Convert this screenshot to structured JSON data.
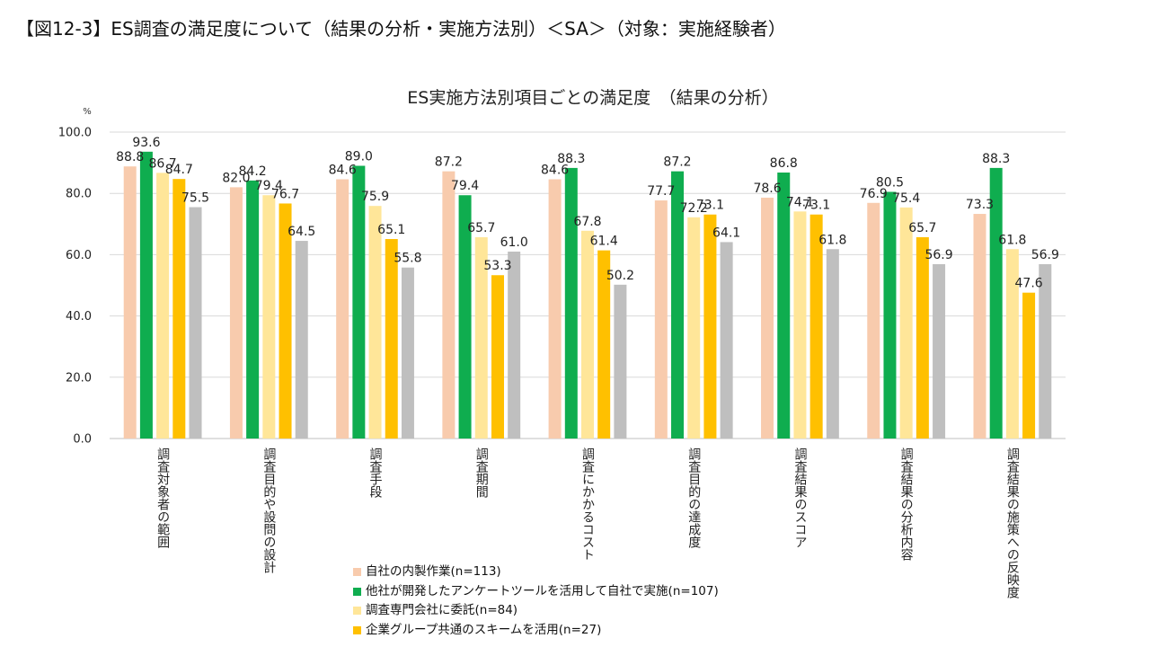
{
  "figure_title": "【図12-3】ES調査の満足度について（結果の分析・実施方法別）＜SA＞（対象：実施経験者）",
  "chart_data": {
    "type": "bar",
    "title": "ES実施方法別項目ごとの満足度　（結果の分析）",
    "ylabel": "%",
    "xlabel": "",
    "ylim": [
      0,
      100
    ],
    "yticks": [
      "0.0",
      "20.0",
      "40.0",
      "60.0",
      "80.0",
      "100.0"
    ],
    "grid": true,
    "legend_position": "bottom-center",
    "categories": [
      "調査対象者の範囲",
      "調査目的や設問の設計",
      "調査手段",
      "調査期間",
      "調査にかかるコスト",
      "調査目的の達成度",
      "調査結果のスコア",
      "調査結果の分析内容",
      "調査結果の施策への反映度"
    ],
    "series": [
      {
        "name": "自社の内製作業(n=113)",
        "color": "#f8cbad",
        "values": [
          88.8,
          82.0,
          84.6,
          87.2,
          84.6,
          77.7,
          78.6,
          76.9,
          73.3
        ]
      },
      {
        "name": "他社が開発したアンケートツールを活用して自社で実施(n=107)",
        "color": "#0fad4f",
        "values": [
          93.6,
          84.2,
          89.0,
          79.4,
          88.3,
          87.2,
          86.8,
          80.5,
          88.3
        ]
      },
      {
        "name": "調査専門会社に委託(n=84)",
        "color": "#ffe699",
        "values": [
          86.7,
          79.4,
          75.9,
          65.7,
          67.8,
          72.2,
          74.1,
          75.4,
          61.8
        ]
      },
      {
        "name": "企業グループ共通のスキームを活用(n=27)",
        "color": "#ffc000",
        "values": [
          84.7,
          76.7,
          65.1,
          53.3,
          61.4,
          73.1,
          73.1,
          65.7,
          47.6
        ]
      },
      {
        "name": "",
        "color": "#bfbfbf",
        "values": [
          75.5,
          64.5,
          55.8,
          61.0,
          50.2,
          64.1,
          61.8,
          56.9,
          56.9
        ]
      }
    ]
  }
}
